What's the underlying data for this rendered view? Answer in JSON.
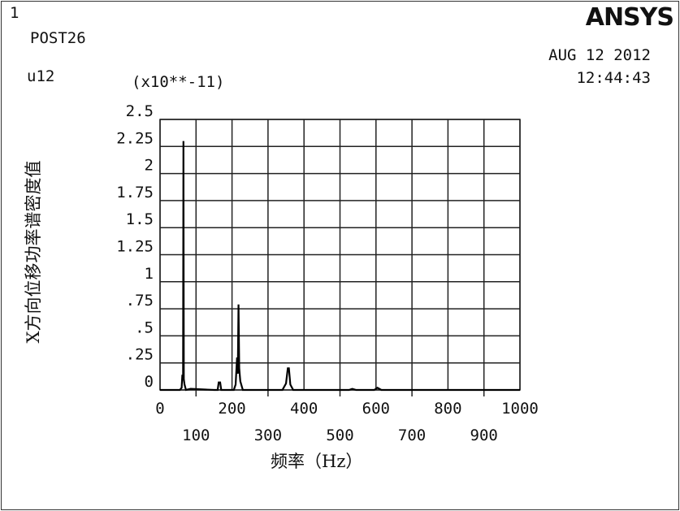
{
  "window_number": "1",
  "program": "POST26",
  "variable": "u12",
  "brand": "ANSYS",
  "date": "AUG 12 2012",
  "time": "12:44:43",
  "chart_data": {
    "type": "line",
    "title": "",
    "xlabel": "频率（Hz）",
    "ylabel": "X方向位移功率谱密度值",
    "y_multiplier": "(x10**-11)",
    "xlim": [
      0,
      1000
    ],
    "ylim": [
      0,
      2.5
    ],
    "grid": true,
    "x_ticks": [
      0,
      100,
      200,
      300,
      400,
      500,
      600,
      700,
      800,
      900,
      1000
    ],
    "x_tick_labels": [
      "0",
      "100",
      "200",
      "300",
      "400",
      "500",
      "600",
      "700",
      "800",
      "900",
      "1000"
    ],
    "y_ticks": [
      0,
      0.25,
      0.5,
      0.75,
      1,
      1.25,
      1.5,
      1.75,
      2,
      2.25,
      2.5
    ],
    "y_tick_labels": [
      "0",
      ".25",
      ".5",
      ".75",
      "1",
      "1.25",
      "1.5",
      "1.75",
      "2",
      "2.25",
      "2.5"
    ],
    "series": [
      {
        "points": [
          [
            0,
            0
          ],
          [
            55,
            0
          ],
          [
            60,
            0.02
          ],
          [
            62,
            0.14
          ],
          [
            64,
            0.1
          ],
          [
            65,
            2.3
          ],
          [
            66,
            0.1
          ],
          [
            68,
            0.05
          ],
          [
            72,
            0
          ],
          [
            85,
            0.01
          ],
          [
            150,
            0
          ],
          [
            160,
            0
          ],
          [
            163,
            0.07
          ],
          [
            167,
            0.07
          ],
          [
            170,
            0
          ],
          [
            205,
            0
          ],
          [
            210,
            0.05
          ],
          [
            214,
            0.3
          ],
          [
            216,
            0.15
          ],
          [
            218,
            0.79
          ],
          [
            220,
            0.2
          ],
          [
            223,
            0.08
          ],
          [
            230,
            0
          ],
          [
            340,
            0
          ],
          [
            350,
            0.06
          ],
          [
            355,
            0.2
          ],
          [
            358,
            0.2
          ],
          [
            362,
            0.05
          ],
          [
            370,
            0
          ],
          [
            525,
            0
          ],
          [
            534,
            0.01
          ],
          [
            545,
            0
          ],
          [
            595,
            0
          ],
          [
            604,
            0.02
          ],
          [
            615,
            0
          ],
          [
            1000,
            0
          ]
        ]
      }
    ]
  }
}
